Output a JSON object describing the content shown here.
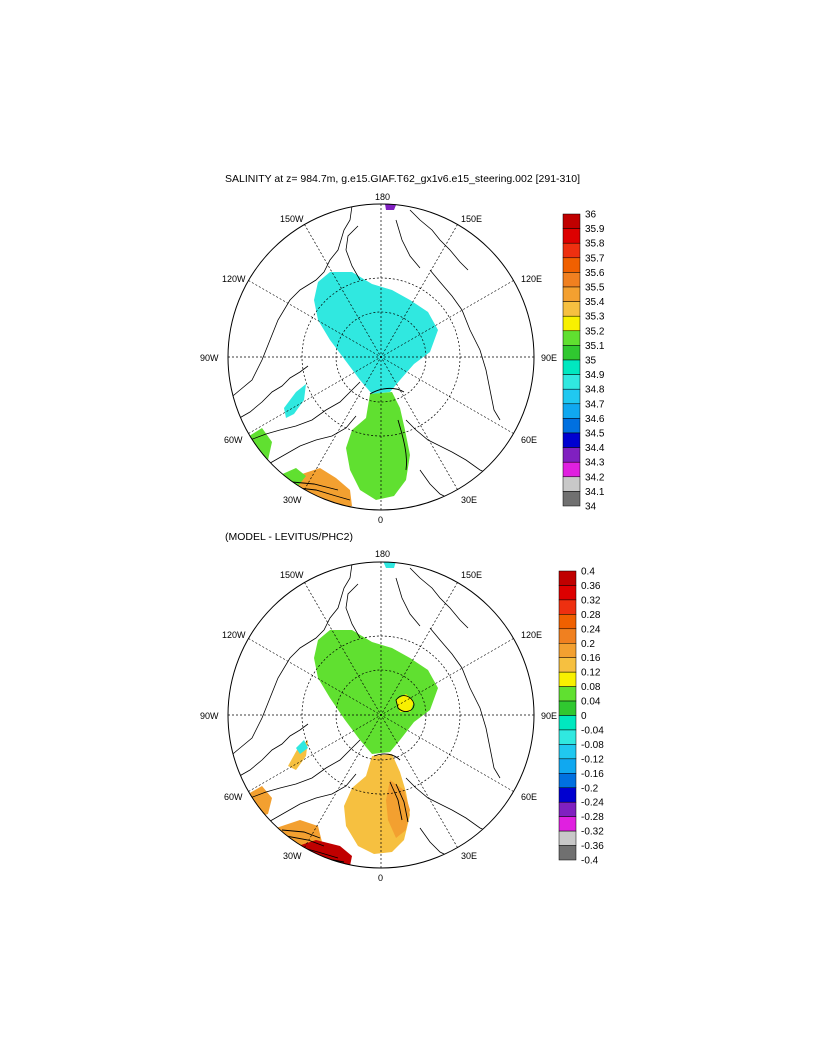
{
  "figure": {
    "top_title": "SALINITY at z= 984.7m, g.e15.GIAF.T62_gx1v6.e15_steering.002 [291-310]",
    "bottom_title": "(MODEL - LEVITUS/PHC2)"
  },
  "map_labels": {
    "top": "180",
    "bottom": "0",
    "left": "90W",
    "right": "90E",
    "w150": "150W",
    "e150": "150E",
    "w120": "120W",
    "e120": "120E",
    "w60": "60W",
    "e60": "60E",
    "w30": "30W",
    "e30": "30E"
  },
  "colorbar_top": {
    "labels": [
      "36",
      "35.9",
      "35.8",
      "35.7",
      "35.6",
      "35.5",
      "35.4",
      "35.3",
      "35.2",
      "35.1",
      "35",
      "34.9",
      "34.8",
      "34.7",
      "34.6",
      "34.5",
      "34.4",
      "34.3",
      "34.2",
      "34.1",
      "34"
    ],
    "colors": [
      "#c00000",
      "#dd0000",
      "#ee3010",
      "#f06000",
      "#f08020",
      "#f3a030",
      "#f6c040",
      "#f8f000",
      "#60e030",
      "#30c830",
      "#00e8c0",
      "#30e8e0",
      "#20c8f0",
      "#10a8f0",
      "#0070e0",
      "#0000d0",
      "#8020c0",
      "#e020e0",
      "#c8c8c8",
      "#707070"
    ]
  },
  "colorbar_bottom": {
    "labels": [
      "0.4",
      "0.36",
      "0.32",
      "0.28",
      "0.24",
      "0.2",
      "0.16",
      "0.12",
      "0.08",
      "0.04",
      "0",
      "-0.04",
      "-0.08",
      "-0.12",
      "-0.16",
      "-0.2",
      "-0.24",
      "-0.28",
      "-0.32",
      "-0.36",
      "-0.4"
    ],
    "colors": [
      "#c00000",
      "#dd0000",
      "#ee3010",
      "#f06000",
      "#f08020",
      "#f3a030",
      "#f6c040",
      "#f8f000",
      "#60e030",
      "#30c830",
      "#00e8c0",
      "#30e8e0",
      "#20c8f0",
      "#10a8f0",
      "#0070e0",
      "#0000d0",
      "#8020c0",
      "#e020e0",
      "#c8c8c8",
      "#707070"
    ]
  },
  "field_colors": {
    "top_main": "#30e8e0",
    "top_atlantic": "#60e030",
    "top_high": "#f3a030",
    "top_mid": "#f6c040",
    "top_purple": "#8020c0",
    "bottom_main": "#60e030",
    "bottom_atlantic": "#f6c040",
    "bottom_yellow": "#f8f000",
    "bottom_orange": "#f3a030",
    "bottom_red": "#c00000",
    "bottom_cyan": "#30e8e0"
  }
}
